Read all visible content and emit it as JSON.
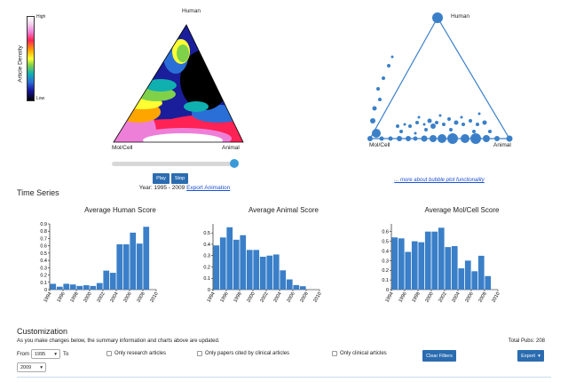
{
  "legend": {
    "label": "Article Density",
    "high": "High",
    "low": "Low"
  },
  "density_triangle": {
    "top": "Human",
    "left": "Mol/Cell",
    "right": "Animal"
  },
  "animation": {
    "slider_position": 1.0,
    "play_label": "Play",
    "stop_label": "Stop",
    "year_text": "Year: 1995 - 2009",
    "export_label": "Export Animation"
  },
  "bubble_triangle": {
    "top": "Human",
    "left": "Mol/Cell",
    "right": "Animal",
    "more_link": "... more about bubble plot functionality",
    "color": "#3a7fc8"
  },
  "time_series": {
    "title": "Time Series"
  },
  "chart_data": [
    {
      "type": "bar",
      "title": "Average Human Score",
      "categories": [
        "1994",
        "1995",
        "1996",
        "1997",
        "1998",
        "1999",
        "2000",
        "2001",
        "2002",
        "2003",
        "2004",
        "2005",
        "2006",
        "2007",
        "2008",
        "2009"
      ],
      "values": [
        0.08,
        0.04,
        0.08,
        0.07,
        0.05,
        0.06,
        0.05,
        0.09,
        0.26,
        0.23,
        0.62,
        0.62,
        0.78,
        0.63,
        0.86,
        null
      ],
      "x_tick_labels": [
        "1994",
        "1996",
        "1998",
        "2000",
        "2002",
        "2004",
        "2006",
        "2008",
        "2010"
      ],
      "y_ticks": [
        0,
        0.1,
        0.2,
        0.3,
        0.4,
        0.5,
        0.6,
        0.7,
        0.8,
        0.9
      ],
      "ylim": [
        0,
        0.9
      ],
      "color": "#3a7fc8"
    },
    {
      "type": "bar",
      "title": "Average Animal Score",
      "categories": [
        "1994",
        "1995",
        "1996",
        "1997",
        "1998",
        "1999",
        "2000",
        "2001",
        "2002",
        "2003",
        "2004",
        "2005",
        "2006",
        "2007",
        "2008",
        "2009"
      ],
      "values": [
        0.39,
        0.46,
        0.55,
        0.44,
        0.48,
        0.35,
        0.35,
        0.29,
        0.3,
        0.31,
        0.17,
        0.09,
        0.04,
        0.03,
        null,
        null
      ],
      "x_tick_labels": [
        "1994",
        "1996",
        "1998",
        "2000",
        "2002",
        "2004",
        "2006",
        "2008",
        "2010"
      ],
      "y_ticks": [
        0,
        0.1,
        0.2,
        0.3,
        0.4,
        0.5
      ],
      "ylim": [
        0,
        0.58
      ],
      "color": "#3a7fc8"
    },
    {
      "type": "bar",
      "title": "Average Mol/Cell Score",
      "categories": [
        "1994",
        "1995",
        "1996",
        "1997",
        "1998",
        "1999",
        "2000",
        "2001",
        "2002",
        "2003",
        "2004",
        "2005",
        "2006",
        "2007",
        "2008",
        "2009"
      ],
      "values": [
        0.54,
        0.53,
        0.39,
        0.5,
        0.49,
        0.6,
        0.6,
        0.64,
        0.44,
        0.45,
        0.22,
        0.3,
        0.19,
        0.35,
        0.14,
        null
      ],
      "x_tick_labels": [
        "1994",
        "1996",
        "1998",
        "2000",
        "2002",
        "2004",
        "2006",
        "2008",
        "2010"
      ],
      "y_ticks": [
        0,
        0.1,
        0.2,
        0.3,
        0.4,
        0.5,
        0.6
      ],
      "ylim": [
        0,
        0.68
      ],
      "color": "#3a7fc8"
    }
  ],
  "customization": {
    "title": "Customization",
    "note": "As you make changes below, the summary information and charts above are updated.",
    "total_pubs": "Total Pubs: 208",
    "from_label": "From",
    "from_value": "1995",
    "to_label": "To",
    "to_value": "2009",
    "checkbox_research": "Only research articles",
    "checkbox_cited": "Only papers cited by clinical articles",
    "checkbox_clinical": "Only clinical articles",
    "clear_filters_label": "Clear Filters",
    "export_label": "Export"
  }
}
